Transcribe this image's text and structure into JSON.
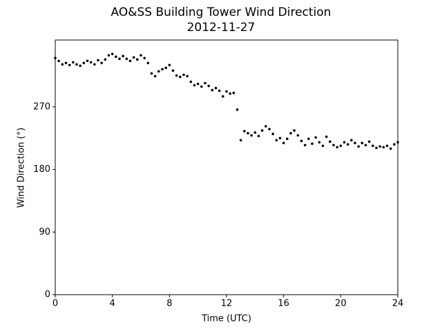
{
  "chart_data": {
    "type": "scatter",
    "title": "AO&SS Building Tower Wind Direction",
    "subtitle": "2012-11-27",
    "x_label": "Time (UTC)",
    "y_label": "Wind Direction (°)",
    "color": "#000000",
    "xlim": [
      0,
      24
    ],
    "xticks": [
      0,
      4,
      8,
      12,
      16,
      20,
      24
    ],
    "ylim": [
      0,
      366
    ],
    "yticks": [
      0,
      90,
      180,
      270
    ],
    "x": [
      0,
      0.25,
      0.5,
      0.75,
      1,
      1.25,
      1.5,
      1.75,
      2,
      2.25,
      2.5,
      2.75,
      3,
      3.25,
      3.5,
      3.75,
      4,
      4.25,
      4.5,
      4.75,
      5,
      5.25,
      5.5,
      5.75,
      6,
      6.25,
      6.5,
      6.75,
      7,
      7.25,
      7.5,
      7.75,
      8,
      8.25,
      8.5,
      8.75,
      9,
      9.25,
      9.5,
      9.75,
      10,
      10.25,
      10.5,
      10.75,
      11,
      11.25,
      11.5,
      11.75,
      12,
      12.25,
      12.5,
      12.75,
      13,
      13.25,
      13.5,
      13.75,
      14,
      14.25,
      14.5,
      14.75,
      15,
      15.25,
      15.5,
      15.75,
      16,
      16.25,
      16.5,
      16.75,
      17,
      17.25,
      17.5,
      17.75,
      18,
      18.25,
      18.5,
      18.75,
      19,
      19.25,
      19.5,
      19.75,
      20,
      20.25,
      20.5,
      20.75,
      21,
      21.25,
      21.5,
      21.75,
      22,
      22.25,
      22.5,
      22.75,
      23,
      23.25,
      23.5,
      23.75,
      24
    ],
    "values": [
      340,
      336,
      331,
      333,
      330,
      334,
      331,
      329,
      333,
      336,
      334,
      331,
      337,
      333,
      338,
      344,
      346,
      342,
      339,
      343,
      339,
      336,
      341,
      338,
      344,
      340,
      333,
      318,
      314,
      321,
      324,
      326,
      330,
      322,
      315,
      313,
      316,
      314,
      306,
      301,
      303,
      299,
      304,
      300,
      294,
      297,
      293,
      285,
      292,
      289,
      290,
      266,
      222,
      235,
      232,
      229,
      233,
      228,
      236,
      242,
      238,
      231,
      222,
      225,
      218,
      224,
      232,
      236,
      229,
      221,
      215,
      224,
      217,
      226,
      219,
      214,
      227,
      220,
      215,
      212,
      214,
      219,
      216,
      222,
      218,
      213,
      218,
      215,
      220,
      214,
      211,
      213,
      212,
      214,
      210,
      216,
      219
    ]
  }
}
